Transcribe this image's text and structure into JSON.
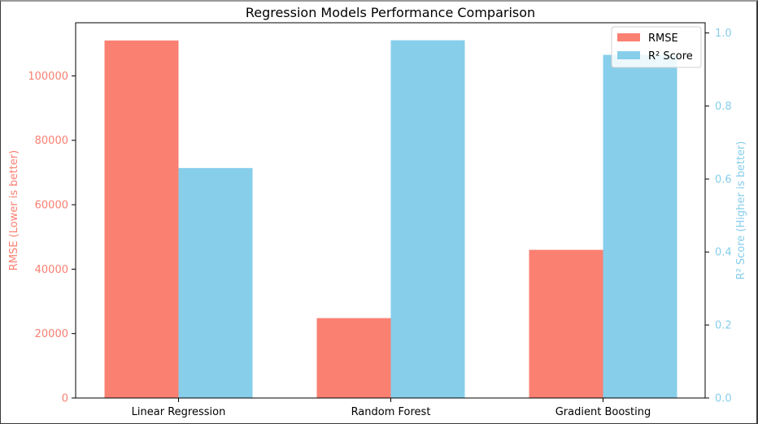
{
  "chart_data": {
    "type": "bar",
    "title": "Regression Models Performance Comparison",
    "categories": [
      "Linear Regression",
      "Random Forest",
      "Gradient Boosting"
    ],
    "series": [
      {
        "name": "RMSE",
        "axis": "left",
        "color": "#fa8072",
        "values": [
          111000,
          24800,
          46000
        ]
      },
      {
        "name": "R² Score",
        "axis": "right",
        "color": "#87ceeb",
        "values": [
          0.63,
          0.98,
          0.94
        ]
      }
    ],
    "ylabel_left": "RMSE (Lower is better)",
    "ylabel_right": "R² Score (Higher is better)",
    "ylim_left": [
      0,
      116500
    ],
    "ylim_right": [
      0,
      1.028
    ],
    "yticks_left": [
      "0",
      "20000",
      "40000",
      "60000",
      "80000",
      "100000"
    ],
    "yticks_right": [
      "0.0",
      "0.2",
      "0.4",
      "0.6",
      "0.8",
      "1.0"
    ],
    "left_axis_color": "#fa8072",
    "right_axis_color": "#87ceeb",
    "legend_position": "top-right",
    "grid": false
  }
}
